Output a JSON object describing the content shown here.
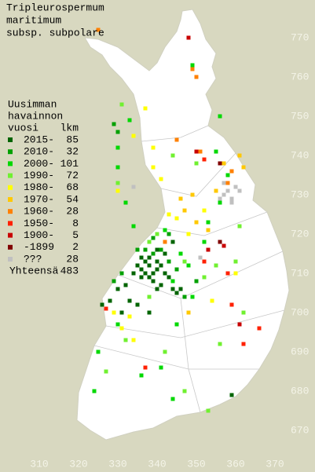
{
  "title": [
    "Tripleurospermum",
    "maritimum",
    "subsp. subpolare"
  ],
  "legend": {
    "header": [
      "Uusimman",
      "havainnon",
      "vuosi"
    ],
    "count_header": "lkm",
    "rows": [
      {
        "label": "2015-",
        "count": 85,
        "color": "#006400"
      },
      {
        "label": "2010-",
        "count": 32,
        "color": "#00a000"
      },
      {
        "label": "2000-",
        "count": 101,
        "color": "#00d800"
      },
      {
        "label": "1990-",
        "count": 72,
        "color": "#70f030"
      },
      {
        "label": "1980-",
        "count": 68,
        "color": "#ffff00"
      },
      {
        "label": "1970-",
        "count": 54,
        "color": "#ffc800"
      },
      {
        "label": "1960-",
        "count": 28,
        "color": "#ff8000"
      },
      {
        "label": "1950-",
        "count": 8,
        "color": "#ff2000"
      },
      {
        "label": "1900-",
        "count": 5,
        "color": "#c80000"
      },
      {
        "label": "-1899",
        "count": 2,
        "color": "#800000"
      },
      {
        "label": "???",
        "count": 28,
        "color": "#c0c0c0"
      }
    ],
    "total_label": "Yhteensä",
    "total": 483
  },
  "xticks": [
    310,
    320,
    330,
    340,
    350,
    360,
    370
  ],
  "yticks": [
    670,
    680,
    690,
    700,
    710,
    720,
    730,
    740,
    750,
    760,
    770
  ],
  "points": [
    [
      336,
      714,
      0
    ],
    [
      337,
      713,
      0
    ],
    [
      338,
      712,
      0
    ],
    [
      336,
      711,
      0
    ],
    [
      339,
      710,
      0
    ],
    [
      340,
      711,
      0
    ],
    [
      338,
      709,
      0
    ],
    [
      337,
      710,
      0
    ],
    [
      341,
      712,
      0
    ],
    [
      340,
      713,
      0
    ],
    [
      335,
      712,
      0
    ],
    [
      342,
      710,
      0
    ],
    [
      339,
      708,
      0
    ],
    [
      343,
      709,
      0
    ],
    [
      338,
      714,
      0
    ],
    [
      336,
      709,
      0
    ],
    [
      334,
      710,
      0
    ],
    [
      341,
      707,
      0
    ],
    [
      340,
      706,
      0
    ],
    [
      344,
      706,
      0
    ],
    [
      345,
      705,
      0
    ],
    [
      346,
      706,
      0
    ],
    [
      332,
      707,
      0
    ],
    [
      330,
      706,
      0
    ],
    [
      333,
      703,
      0
    ],
    [
      335,
      702,
      0
    ],
    [
      331,
      700,
      0
    ],
    [
      338,
      700,
      0
    ],
    [
      328,
      703,
      0
    ],
    [
      342,
      715,
      0
    ],
    [
      340,
      716,
      0
    ],
    [
      344,
      718,
      0
    ],
    [
      326,
      702,
      0
    ],
    [
      359,
      679,
      0
    ],
    [
      339,
      715,
      1
    ],
    [
      341,
      716,
      1
    ],
    [
      337,
      716,
      1
    ],
    [
      343,
      713,
      1
    ],
    [
      345,
      711,
      1
    ],
    [
      343,
      720,
      1
    ],
    [
      339,
      719,
      1
    ],
    [
      335,
      716,
      1
    ],
    [
      347,
      704,
      1
    ],
    [
      350,
      708,
      1
    ],
    [
      331,
      710,
      1
    ],
    [
      329,
      708,
      1
    ],
    [
      329,
      748,
      1
    ],
    [
      330,
      746,
      1
    ],
    [
      342,
      721,
      2
    ],
    [
      346,
      715,
      2
    ],
    [
      348,
      712,
      2
    ],
    [
      344,
      708,
      2
    ],
    [
      349,
      704,
      2
    ],
    [
      352,
      718,
      2
    ],
    [
      353,
      723,
      2
    ],
    [
      356,
      728,
      2
    ],
    [
      358,
      735,
      2
    ],
    [
      355,
      741,
      2
    ],
    [
      330,
      742,
      2
    ],
    [
      325,
      690,
      2
    ],
    [
      324,
      680,
      2
    ],
    [
      330,
      697,
      2
    ],
    [
      345,
      697,
      2
    ],
    [
      341,
      686,
      2
    ],
    [
      344,
      678,
      2
    ],
    [
      336,
      684,
      2
    ],
    [
      330,
      737,
      2
    ],
    [
      356,
      750,
      2
    ],
    [
      349,
      763,
      2
    ],
    [
      333,
      749,
      2
    ],
    [
      332,
      728,
      2
    ],
    [
      334,
      722,
      2
    ],
    [
      338,
      718,
      3
    ],
    [
      340,
      720,
      3
    ],
    [
      347,
      713,
      3
    ],
    [
      355,
      712,
      3
    ],
    [
      352,
      709,
      3
    ],
    [
      360,
      713,
      3
    ],
    [
      338,
      704,
      3
    ],
    [
      332,
      693,
      3
    ],
    [
      327,
      685,
      3
    ],
    [
      342,
      690,
      3
    ],
    [
      347,
      680,
      3
    ],
    [
      353,
      675,
      3
    ],
    [
      362,
      700,
      3
    ],
    [
      356,
      692,
      3
    ],
    [
      331,
      753,
      3
    ],
    [
      330,
      733,
      3
    ],
    [
      350,
      738,
      3
    ],
    [
      344,
      740,
      3
    ],
    [
      361,
      722,
      3
    ],
    [
      333,
      699,
      4
    ],
    [
      331,
      696,
      4
    ],
    [
      334,
      693,
      4
    ],
    [
      329,
      700,
      4
    ],
    [
      345,
      724,
      4
    ],
    [
      343,
      725,
      4
    ],
    [
      339,
      737,
      4
    ],
    [
      337,
      752,
      4
    ],
    [
      330,
      731,
      4
    ],
    [
      341,
      734,
      4
    ],
    [
      348,
      720,
      4
    ],
    [
      352,
      726,
      4
    ],
    [
      354,
      703,
      4
    ],
    [
      360,
      710,
      4
    ],
    [
      339,
      742,
      4
    ],
    [
      334,
      745,
      4
    ],
    [
      347,
      726,
      5
    ],
    [
      350,
      723,
      5
    ],
    [
      346,
      729,
      5
    ],
    [
      355,
      731,
      5
    ],
    [
      357,
      738,
      5
    ],
    [
      361,
      740,
      5
    ],
    [
      362,
      737,
      5
    ],
    [
      349,
      730,
      5
    ],
    [
      353,
      721,
      5
    ],
    [
      348,
      700,
      5
    ],
    [
      325,
      772,
      6
    ],
    [
      358,
      733,
      6
    ],
    [
      359,
      736,
      6
    ],
    [
      345,
      744,
      6
    ],
    [
      351,
      741,
      6
    ],
    [
      350,
      760,
      6
    ],
    [
      349,
      762,
      6
    ],
    [
      342,
      718,
      6
    ],
    [
      352,
      713,
      7
    ],
    [
      358,
      710,
      7
    ],
    [
      327,
      701,
      7
    ],
    [
      359,
      702,
      7
    ],
    [
      352,
      739,
      7
    ],
    [
      366,
      696,
      7
    ],
    [
      362,
      692,
      7
    ],
    [
      337,
      686,
      7
    ],
    [
      353,
      716,
      8
    ],
    [
      350,
      741,
      8
    ],
    [
      357,
      717,
      8
    ],
    [
      361,
      697,
      8
    ],
    [
      348,
      770,
      8
    ],
    [
      356,
      738,
      9
    ],
    [
      356,
      718,
      9
    ],
    [
      357,
      730,
      10
    ],
    [
      358,
      731,
      10
    ],
    [
      359,
      729,
      10
    ],
    [
      360,
      732,
      10
    ],
    [
      361,
      731,
      10
    ],
    [
      357,
      733,
      10
    ],
    [
      334,
      732,
      10
    ],
    [
      351,
      714,
      10
    ],
    [
      356,
      729,
      10
    ],
    [
      359,
      728,
      10
    ]
  ]
}
